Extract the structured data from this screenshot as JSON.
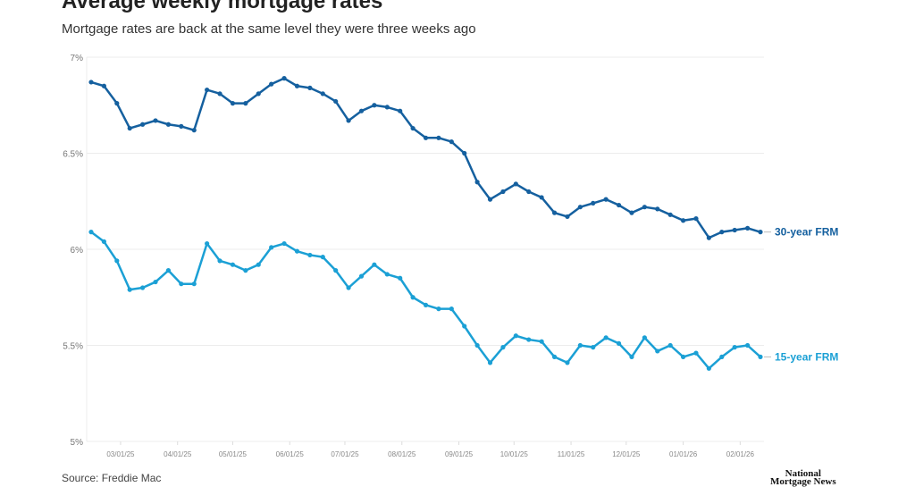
{
  "title": "Average weekly mortgage rates",
  "subtitle": "Mortgage rates are back at the same level they were three weeks ago",
  "source": "Source: Freddie Mac",
  "logo": "National Mortgage News",
  "chart_data": {
    "type": "line",
    "title": "Average weekly mortgage rates",
    "subtitle": "Mortgage rates are back at the same level they were three weeks ago",
    "ylim": [
      5,
      7
    ],
    "y_ticks": [
      "5%",
      "5.5%",
      "6%",
      "6.5%",
      "7%"
    ],
    "x_ticks": [
      "03/01/25",
      "04/01/25",
      "05/01/25",
      "06/01/25",
      "07/01/25",
      "08/01/25",
      "09/01/25",
      "10/01/25",
      "11/01/25",
      "12/01/25",
      "01/01/26",
      "02/01/26"
    ],
    "grid": "horizontal",
    "x_start": "2025-02-13",
    "x_interval": "weekly",
    "series": [
      {
        "name": "30-year FRM",
        "color": "#15609f",
        "values": [
          6.87,
          6.85,
          6.76,
          6.63,
          6.65,
          6.67,
          6.65,
          6.64,
          6.62,
          6.83,
          6.81,
          6.76,
          6.76,
          6.81,
          6.86,
          6.89,
          6.85,
          6.84,
          6.81,
          6.77,
          6.67,
          6.72,
          6.75,
          6.74,
          6.72,
          6.63,
          6.58,
          6.58,
          6.56,
          6.5,
          6.35,
          6.26,
          6.3,
          6.34,
          6.3,
          6.27,
          6.19,
          6.17,
          6.22,
          6.24,
          6.26,
          6.23,
          6.19,
          6.22,
          6.21,
          6.18,
          6.15,
          6.16,
          6.06,
          6.09,
          6.1,
          6.11,
          6.09
        ]
      },
      {
        "name": "15-year FRM",
        "color": "#1ba0d5",
        "values": [
          6.09,
          6.04,
          5.94,
          5.79,
          5.8,
          5.83,
          5.89,
          5.82,
          5.82,
          6.03,
          5.94,
          5.92,
          5.89,
          5.92,
          6.01,
          6.03,
          5.99,
          5.97,
          5.96,
          5.89,
          5.8,
          5.86,
          5.92,
          5.87,
          5.85,
          5.75,
          5.71,
          5.69,
          5.69,
          5.6,
          5.5,
          5.41,
          5.49,
          5.55,
          5.53,
          5.52,
          5.44,
          5.41,
          5.5,
          5.49,
          5.54,
          5.51,
          5.44,
          5.54,
          5.47,
          5.5,
          5.44,
          5.46,
          5.38,
          5.44,
          5.49,
          5.5,
          5.44
        ]
      }
    ]
  }
}
